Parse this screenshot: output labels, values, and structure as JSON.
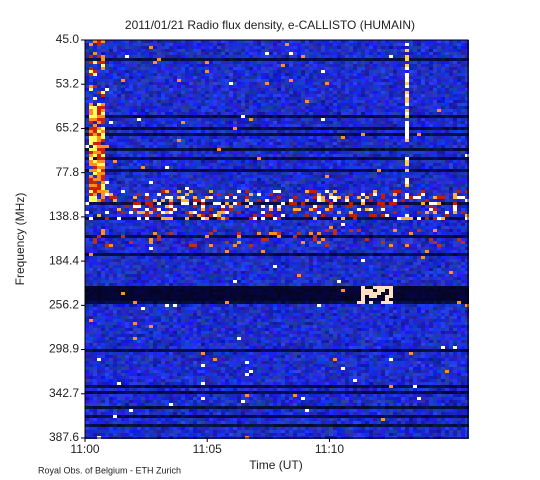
{
  "chart_data": {
    "type": "spectrogram",
    "title": "2011/01/21  Radio flux density, e-CALLISTO (HUMAIN)",
    "x_label": "Time (UT)",
    "y_label": "Frequency (MHz)",
    "xlim": [
      "11:00:00",
      "11:15:40"
    ],
    "xticks": [
      "11:00",
      "11:05",
      "11:10"
    ],
    "ylim": [
      45,
      387.6
    ],
    "yticks": [
      {
        "value": 45,
        "label": "45.0"
      },
      53.2,
      65.2,
      77.8,
      138.8,
      184.4,
      256.2,
      298.9,
      342.7,
      387.6
    ],
    "footer": "Royal Obs. of Belgium - ETH Zurich"
  }
}
